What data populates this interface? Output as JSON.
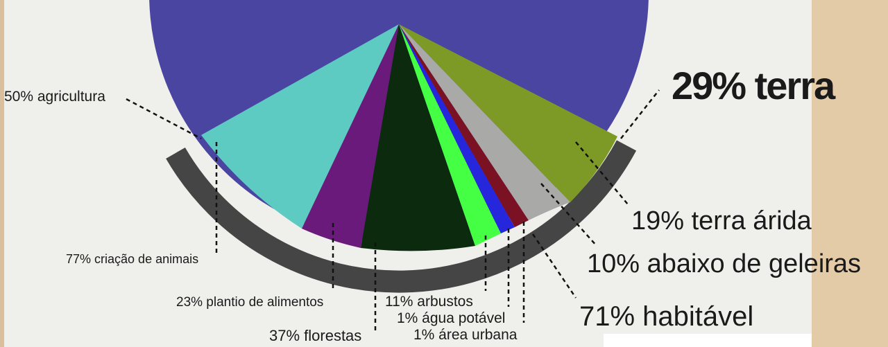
{
  "header": {
    "title": "29% terra"
  },
  "labels": [
    {
      "text": "50% agricultura"
    },
    {
      "text": "77% criação de animais"
    },
    {
      "text": "23% plantio de alimentos"
    },
    {
      "text": "37% florestas"
    },
    {
      "text": "11% arbustos"
    },
    {
      "text": "1% água potável"
    },
    {
      "text": "1% área urbana"
    },
    {
      "text": "19% terra árida"
    },
    {
      "text": "10% abaixo de geleiras"
    },
    {
      "text": "71% habitável"
    }
  ]
}
